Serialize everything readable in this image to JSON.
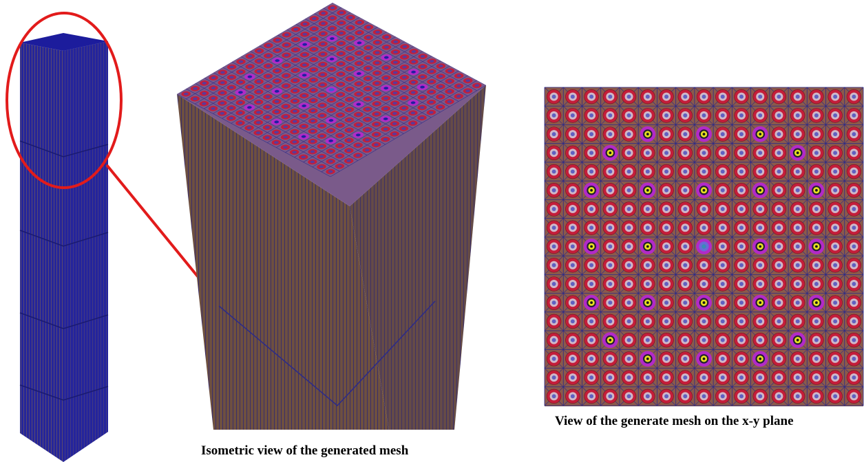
{
  "captions": {
    "isometric": "Isometric view of the generated mesh",
    "xy_plane": "View of the generate mesh on the x-y plane"
  },
  "mesh": {
    "grid_size": 17,
    "guide_tubes": [
      [
        2,
        5
      ],
      [
        2,
        8
      ],
      [
        2,
        11
      ],
      [
        3,
        3
      ],
      [
        3,
        13
      ],
      [
        5,
        2
      ],
      [
        5,
        5
      ],
      [
        5,
        8
      ],
      [
        5,
        11
      ],
      [
        5,
        14
      ],
      [
        8,
        2
      ],
      [
        8,
        5
      ],
      [
        8,
        11
      ],
      [
        8,
        14
      ],
      [
        11,
        2
      ],
      [
        11,
        5
      ],
      [
        11,
        8
      ],
      [
        11,
        11
      ],
      [
        11,
        14
      ],
      [
        13,
        3
      ],
      [
        13,
        13
      ],
      [
        14,
        5
      ],
      [
        14,
        8
      ],
      [
        14,
        11
      ]
    ],
    "instrument_tube": [
      8,
      8
    ]
  },
  "colors": {
    "coolant": "#8b5a4b",
    "fuel_ring": "#c41e3a",
    "mesh_line": "#2a2a8a",
    "guide_ring": "#b22ac8",
    "guide_center": "#e8e020",
    "column_face": "#2a2a9a",
    "column_side": "#6a4a5a",
    "highlight": "#e21b1b"
  }
}
